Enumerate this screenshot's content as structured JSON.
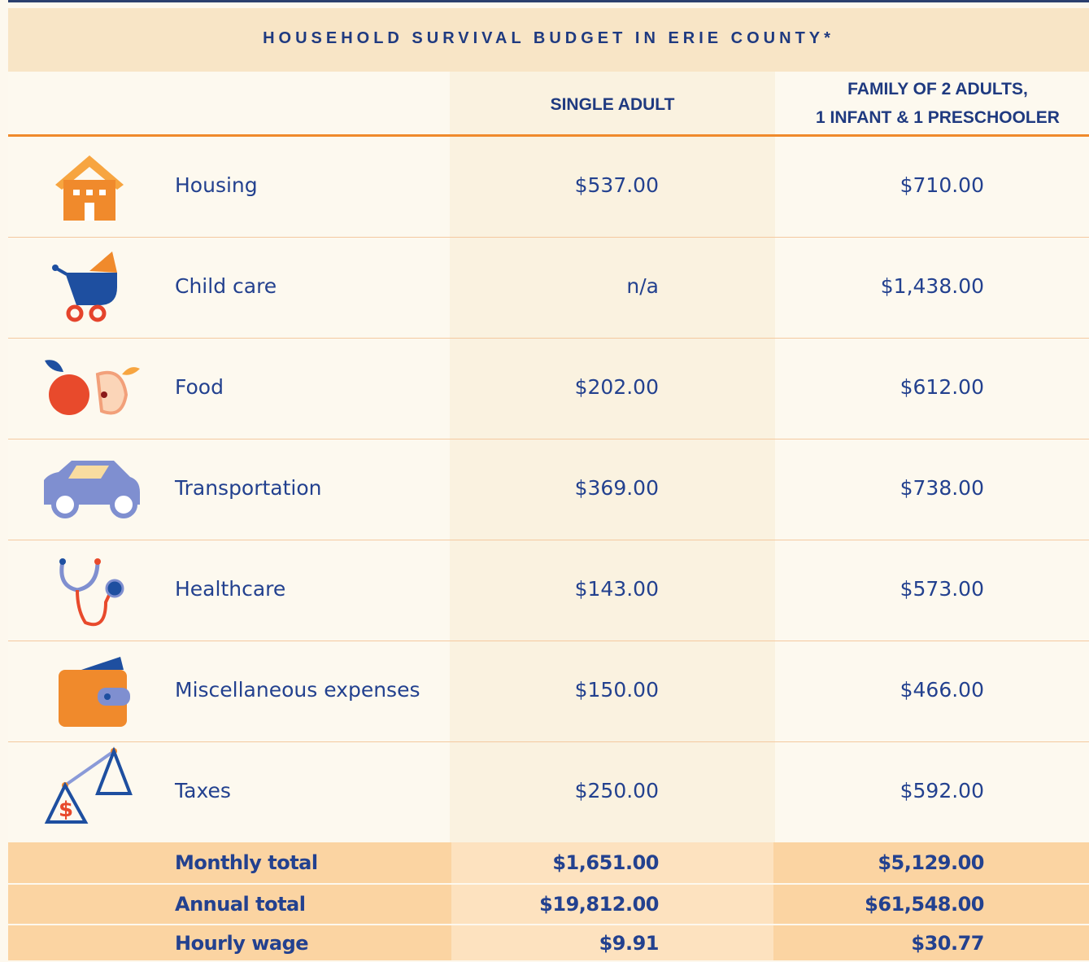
{
  "table": {
    "title": "HOUSEHOLD SURVIVAL BUDGET IN ERIE COUNTY*",
    "columns": [
      "SINGLE ADULT",
      "FAMILY OF 2 ADULTS,",
      "1 INFANT & 1 PRESCHOOLER"
    ],
    "rows": [
      [
        "Housing",
        "$537.00",
        "$710.00"
      ],
      [
        "Child care",
        "n/a",
        "$1,438.00"
      ],
      [
        "Food",
        "$202.00",
        "$612.00"
      ],
      [
        "Transportation",
        "$369.00",
        "$738.00"
      ],
      [
        "Healthcare",
        "$143.00",
        "$573.00"
      ],
      [
        "Miscellaneous expenses",
        "$150.00",
        "$466.00"
      ],
      [
        "Taxes",
        "$250.00",
        "$592.00"
      ]
    ],
    "totals": [
      [
        "Monthly total",
        "$1,651.00",
        "$5,129.00"
      ],
      [
        "Annual total",
        "$19,812.00",
        "$61,548.00"
      ],
      [
        "Hourly wage",
        "$9.91",
        "$30.77"
      ]
    ]
  }
}
